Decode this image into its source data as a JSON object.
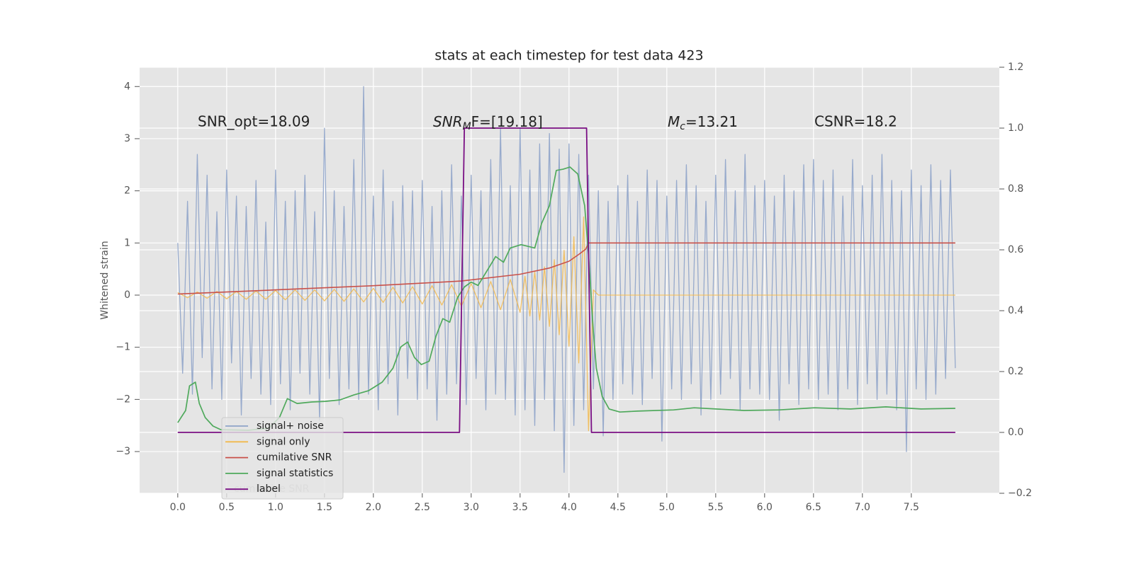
{
  "chart_data": {
    "type": "line",
    "title": "stats at each timestep for test data 423",
    "ylabel": "Whitened strain",
    "xlim": [
      -0.39,
      8.4
    ],
    "ylim": [
      -3.8,
      4.37
    ],
    "y2lim": [
      -0.2,
      1.2
    ],
    "xticks": [
      {
        "value": 0,
        "label": "0.0"
      },
      0.5,
      {
        "value": 1,
        "label": "1.0"
      },
      1.5,
      {
        "value": 2,
        "label": "2.0"
      },
      2.5,
      {
        "value": 3,
        "label": "3.0"
      },
      3.5,
      {
        "value": 4,
        "label": "4.0"
      },
      4.5,
      {
        "value": 5,
        "label": "5.0"
      },
      5.5,
      {
        "value": 6,
        "label": "6.0"
      },
      6.5,
      {
        "value": 7,
        "label": "7.0"
      },
      7.5
    ],
    "yticks": [
      {
        "value": -3,
        "label": "−3"
      },
      {
        "value": -2,
        "label": "−2"
      },
      {
        "value": -1,
        "label": "−1"
      },
      0,
      1,
      2,
      3,
      4
    ],
    "y2ticks": [
      {
        "value": -0.2,
        "label": "−0.2"
      },
      {
        "value": 0,
        "label": "0.0"
      },
      0.2,
      0.4,
      0.6,
      0.8,
      {
        "value": 1,
        "label": "1.0"
      },
      1.2
    ],
    "grid": true,
    "annotations": [
      {
        "text": "SNR_opt=18.09"
      },
      {
        "main": "SNR",
        "sub": "M",
        "rest": "F=[19.18]"
      },
      {
        "main": "M",
        "sub": "c",
        "rest": "=13.21"
      },
      {
        "text": "CSNR=18.2"
      }
    ],
    "legend_ghost": "cumilative SNR",
    "series": [
      {
        "name": "signal+ noise",
        "color": "#8ea3c9",
        "x": [
          0,
          0.05,
          0.1,
          0.15,
          0.2,
          0.25,
          0.3,
          0.35,
          0.4,
          0.45,
          0.5,
          0.55,
          0.6,
          0.65,
          0.7,
          0.75,
          0.8,
          0.85,
          0.9,
          0.95,
          1,
          1.05,
          1.1,
          1.15,
          1.2,
          1.25,
          1.3,
          1.35,
          1.4,
          1.45,
          1.5,
          1.55,
          1.6,
          1.65,
          1.7,
          1.75,
          1.8,
          1.85,
          1.9,
          1.95,
          2,
          2.05,
          2.1,
          2.15,
          2.2,
          2.25,
          2.3,
          2.35,
          2.4,
          2.45,
          2.5,
          2.55,
          2.6,
          2.65,
          2.7,
          2.75,
          2.8,
          2.85,
          2.9,
          2.95,
          3,
          3.05,
          3.1,
          3.15,
          3.2,
          3.25,
          3.3,
          3.35,
          3.4,
          3.45,
          3.5,
          3.55,
          3.6,
          3.65,
          3.7,
          3.75,
          3.8,
          3.85,
          3.9,
          3.95,
          4,
          4.05,
          4.1,
          4.15,
          4.2,
          4.25,
          4.3,
          4.35,
          4.4,
          4.45,
          4.5,
          4.55,
          4.6,
          4.65,
          4.7,
          4.75,
          4.8,
          4.85,
          4.9,
          4.95,
          5,
          5.05,
          5.1,
          5.15,
          5.2,
          5.25,
          5.3,
          5.35,
          5.4,
          5.45,
          5.5,
          5.55,
          5.6,
          5.65,
          5.7,
          5.75,
          5.8,
          5.85,
          5.9,
          5.95,
          6,
          6.05,
          6.1,
          6.15,
          6.2,
          6.25,
          6.3,
          6.35,
          6.4,
          6.45,
          6.5,
          6.55,
          6.6,
          6.65,
          6.7,
          6.75,
          6.8,
          6.85,
          6.9,
          6.95,
          7,
          7.05,
          7.1,
          7.15,
          7.2,
          7.25,
          7.3,
          7.35,
          7.4,
          7.45,
          7.5,
          7.55,
          7.6,
          7.65,
          7.7,
          7.75,
          7.8,
          7.85,
          7.9,
          7.95
        ],
        "values": [
          1.0,
          -1.5,
          1.8,
          -1.9,
          2.7,
          -1.2,
          2.3,
          -1.8,
          1.6,
          -2.0,
          2.4,
          -1.3,
          1.9,
          -2.3,
          1.7,
          -1.6,
          2.2,
          -1.9,
          1.4,
          -2.1,
          2.4,
          -1.7,
          1.8,
          -2.2,
          2.0,
          -1.5,
          2.3,
          -1.9,
          1.6,
          -2.4,
          3.2,
          -1.6,
          2.0,
          -2.1,
          1.7,
          -1.8,
          2.6,
          -2.0,
          4.0,
          -1.9,
          1.9,
          -2.2,
          2.4,
          -1.7,
          1.8,
          -2.3,
          2.1,
          -1.6,
          2.0,
          -2.0,
          2.2,
          -1.8,
          1.7,
          -2.4,
          2.0,
          -1.9,
          2.5,
          -1.7,
          1.9,
          -2.1,
          2.3,
          -1.6,
          2.0,
          -2.2,
          2.6,
          -1.9,
          3.2,
          -2.0,
          2.1,
          -2.3,
          3.2,
          -2.2,
          2.4,
          -2.5,
          2.9,
          -2.0,
          3.1,
          -2.6,
          2.8,
          -3.4,
          2.9,
          -2.5,
          2.7,
          -2.2,
          2.3,
          -1.8,
          2.0,
          -2.7,
          1.8,
          -2.0,
          2.1,
          -1.7,
          2.3,
          -1.9,
          1.8,
          -2.1,
          2.4,
          -1.6,
          2.2,
          -2.8,
          1.9,
          -1.8,
          2.2,
          -2.0,
          2.5,
          -1.7,
          2.1,
          -2.3,
          1.8,
          -2.0,
          2.3,
          -1.9,
          2.6,
          -1.6,
          2.0,
          -2.2,
          2.7,
          -1.8,
          2.1,
          -1.9,
          2.2,
          -2.0,
          1.9,
          -2.4,
          2.3,
          -1.7,
          2.0,
          -2.1,
          2.5,
          -1.8,
          2.6,
          -2.0,
          2.2,
          -1.9,
          2.4,
          -2.2,
          1.9,
          -1.8,
          2.6,
          -2.1,
          2.1,
          -1.7,
          2.3,
          -2.0,
          2.7,
          -1.9,
          2.2,
          -2.2,
          2.0,
          -3.0,
          2.4,
          -1.8,
          2.1,
          -2.0,
          2.5,
          -1.9,
          2.2,
          -1.6,
          2.4,
          -1.4
        ]
      },
      {
        "name": "signal only",
        "color": "#f2b94c",
        "x": [
          0,
          0.1,
          0.2,
          0.3,
          0.4,
          0.5,
          0.6,
          0.7,
          0.8,
          0.9,
          1,
          1.1,
          1.2,
          1.3,
          1.4,
          1.5,
          1.6,
          1.7,
          1.8,
          1.9,
          2,
          2.1,
          2.2,
          2.3,
          2.4,
          2.5,
          2.6,
          2.7,
          2.8,
          2.9,
          3,
          3.1,
          3.2,
          3.3,
          3.4,
          3.5,
          3.55,
          3.6,
          3.65,
          3.7,
          3.75,
          3.8,
          3.85,
          3.9,
          3.95,
          4,
          4.05,
          4.1,
          4.15,
          4.2,
          4.25,
          4.3,
          7.95
        ],
        "values": [
          0.05,
          -0.05,
          0.06,
          -0.06,
          0.07,
          -0.07,
          0.07,
          -0.08,
          0.08,
          -0.08,
          0.09,
          -0.09,
          0.1,
          -0.1,
          0.1,
          -0.11,
          0.11,
          -0.12,
          0.12,
          -0.13,
          0.13,
          -0.14,
          0.15,
          -0.15,
          0.16,
          -0.17,
          0.18,
          -0.19,
          0.2,
          -0.21,
          0.22,
          -0.24,
          0.26,
          -0.28,
          0.3,
          -0.33,
          0.36,
          -0.4,
          0.44,
          -0.48,
          0.54,
          -0.6,
          0.68,
          -0.76,
          0.86,
          -0.98,
          1.12,
          -1.3,
          1.5,
          -2.6,
          0.1,
          0,
          0
        ]
      },
      {
        "name": "cumilative SNR",
        "color": "#c9514a",
        "x": [
          0,
          1,
          2,
          2.9,
          3.5,
          3.8,
          4.0,
          4.1,
          4.17,
          4.2,
          7.95
        ],
        "values": [
          0.02,
          0.1,
          0.18,
          0.27,
          0.4,
          0.52,
          0.65,
          0.78,
          0.88,
          1.0,
          1.0
        ]
      },
      {
        "name": "signal statistics",
        "color": "#4fa95c",
        "axis": "y2",
        "x": [
          0,
          0.08,
          0.12,
          0.18,
          0.22,
          0.28,
          0.36,
          0.44,
          0.72,
          0.93,
          1.04,
          1.12,
          1.22,
          1.37,
          1.51,
          1.66,
          1.8,
          1.95,
          2.09,
          2.2,
          2.28,
          2.35,
          2.42,
          2.49,
          2.57,
          2.64,
          2.71,
          2.78,
          2.86,
          2.93,
          3.0,
          3.07,
          3.18,
          3.25,
          3.33,
          3.4,
          3.51,
          3.65,
          3.72,
          3.8,
          3.87,
          3.94,
          4.01,
          4.09,
          4.16,
          4.2,
          4.25,
          4.28,
          4.34,
          4.41,
          4.52,
          4.7,
          5.07,
          5.28,
          5.79,
          6.15,
          6.51,
          6.88,
          7.24,
          7.6,
          7.95
        ],
        "values": [
          0.032,
          0.072,
          0.153,
          0.165,
          0.095,
          0.049,
          0.021,
          0.009,
          0.007,
          0.014,
          0.049,
          0.111,
          0.095,
          0.1,
          0.102,
          0.107,
          0.123,
          0.137,
          0.165,
          0.211,
          0.281,
          0.297,
          0.246,
          0.223,
          0.234,
          0.316,
          0.374,
          0.362,
          0.443,
          0.478,
          0.494,
          0.483,
          0.541,
          0.578,
          0.559,
          0.606,
          0.617,
          0.606,
          0.687,
          0.745,
          0.861,
          0.865,
          0.872,
          0.849,
          0.745,
          0.582,
          0.327,
          0.211,
          0.118,
          0.077,
          0.067,
          0.07,
          0.074,
          0.081,
          0.072,
          0.074,
          0.081,
          0.077,
          0.084,
          0.077,
          0.079
        ]
      },
      {
        "name": "label",
        "color": "#7a0f84",
        "axis": "y2",
        "x": [
          0,
          2.88,
          2.93,
          4.18,
          4.23,
          7.95
        ],
        "values": [
          0,
          0,
          1,
          1,
          0,
          0
        ]
      }
    ]
  }
}
